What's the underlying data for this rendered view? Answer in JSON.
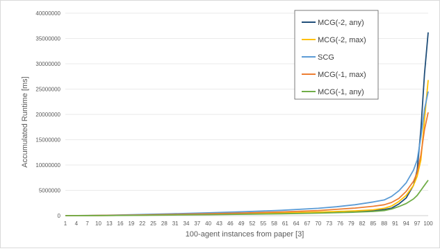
{
  "chart_data": {
    "type": "line",
    "xlabel": "100-agent instances from paper [3]",
    "ylabel": "Accumulated Runtime [ms]",
    "ylim": [
      0,
      40000000
    ],
    "xlim": [
      1,
      100
    ],
    "y_ticks": [
      0,
      5000000,
      10000000,
      15000000,
      20000000,
      25000000,
      30000000,
      35000000,
      40000000
    ],
    "y_tick_labels": [
      "0",
      "5000000",
      "10000000",
      "15000000",
      "20000000",
      "25000000",
      "30000000",
      "35000000",
      "40000000"
    ],
    "x_tick_labels": [
      "1",
      "4",
      "7",
      "10",
      "13",
      "16",
      "19",
      "22",
      "25",
      "28",
      "31",
      "34",
      "37",
      "40",
      "43",
      "46",
      "49",
      "52",
      "55",
      "58",
      "61",
      "64",
      "67",
      "70",
      "73",
      "76",
      "79",
      "82",
      "85",
      "88",
      "91",
      "94",
      "97",
      "100"
    ],
    "grid": "horizontal",
    "legend_position": "top-right",
    "series": [
      {
        "name": "MCG(-2, any)",
        "color": "#1f4e79",
        "points": [
          [
            1,
            0
          ],
          [
            10,
            30000
          ],
          [
            20,
            90000
          ],
          [
            30,
            180000
          ],
          [
            40,
            280000
          ],
          [
            50,
            380000
          ],
          [
            60,
            500000
          ],
          [
            70,
            650000
          ],
          [
            80,
            850000
          ],
          [
            85,
            1000000
          ],
          [
            88,
            1200000
          ],
          [
            90,
            1500000
          ],
          [
            92,
            2300000
          ],
          [
            94,
            3500000
          ],
          [
            96,
            6000000
          ],
          [
            97,
            9000000
          ],
          [
            98,
            17000000
          ],
          [
            99,
            28000000
          ],
          [
            100,
            36200000
          ]
        ]
      },
      {
        "name": "MCG(-2, max)",
        "color": "#ffc000",
        "points": [
          [
            1,
            0
          ],
          [
            10,
            30000
          ],
          [
            20,
            90000
          ],
          [
            30,
            180000
          ],
          [
            40,
            280000
          ],
          [
            50,
            390000
          ],
          [
            60,
            520000
          ],
          [
            70,
            700000
          ],
          [
            80,
            950000
          ],
          [
            85,
            1150000
          ],
          [
            88,
            1450000
          ],
          [
            90,
            1900000
          ],
          [
            92,
            2800000
          ],
          [
            94,
            4000000
          ],
          [
            96,
            6000000
          ],
          [
            97,
            7800000
          ],
          [
            98,
            11000000
          ],
          [
            99,
            19000000
          ],
          [
            100,
            26800000
          ]
        ]
      },
      {
        "name": "SCG",
        "color": "#5b9bd5",
        "points": [
          [
            1,
            0
          ],
          [
            10,
            60000
          ],
          [
            20,
            200000
          ],
          [
            30,
            370000
          ],
          [
            40,
            560000
          ],
          [
            50,
            780000
          ],
          [
            60,
            1050000
          ],
          [
            70,
            1450000
          ],
          [
            75,
            1750000
          ],
          [
            80,
            2150000
          ],
          [
            85,
            2700000
          ],
          [
            88,
            3100000
          ],
          [
            90,
            3800000
          ],
          [
            92,
            4900000
          ],
          [
            94,
            6500000
          ],
          [
            96,
            9000000
          ],
          [
            97,
            11000000
          ],
          [
            98,
            15500000
          ],
          [
            99,
            21000000
          ],
          [
            100,
            24500000
          ]
        ]
      },
      {
        "name": "MCG(-1, max)",
        "color": "#ed7d31",
        "points": [
          [
            1,
            0
          ],
          [
            10,
            40000
          ],
          [
            20,
            120000
          ],
          [
            30,
            230000
          ],
          [
            40,
            370000
          ],
          [
            50,
            530000
          ],
          [
            60,
            740000
          ],
          [
            70,
            1000000
          ],
          [
            75,
            1250000
          ],
          [
            80,
            1500000
          ],
          [
            85,
            1850000
          ],
          [
            88,
            2150000
          ],
          [
            90,
            2600000
          ],
          [
            92,
            3400000
          ],
          [
            94,
            4800000
          ],
          [
            96,
            6800000
          ],
          [
            97,
            8500000
          ],
          [
            98,
            12000000
          ],
          [
            99,
            17000000
          ],
          [
            100,
            20400000
          ]
        ]
      },
      {
        "name": "MCG(-1, any)",
        "color": "#70ad47",
        "points": [
          [
            1,
            0
          ],
          [
            10,
            20000
          ],
          [
            20,
            60000
          ],
          [
            30,
            120000
          ],
          [
            40,
            190000
          ],
          [
            50,
            270000
          ],
          [
            60,
            370000
          ],
          [
            70,
            500000
          ],
          [
            80,
            680000
          ],
          [
            85,
            820000
          ],
          [
            88,
            1000000
          ],
          [
            90,
            1300000
          ],
          [
            92,
            1800000
          ],
          [
            94,
            2400000
          ],
          [
            96,
            3300000
          ],
          [
            97,
            4000000
          ],
          [
            98,
            5000000
          ],
          [
            99,
            6000000
          ],
          [
            100,
            7000000
          ]
        ]
      }
    ]
  }
}
